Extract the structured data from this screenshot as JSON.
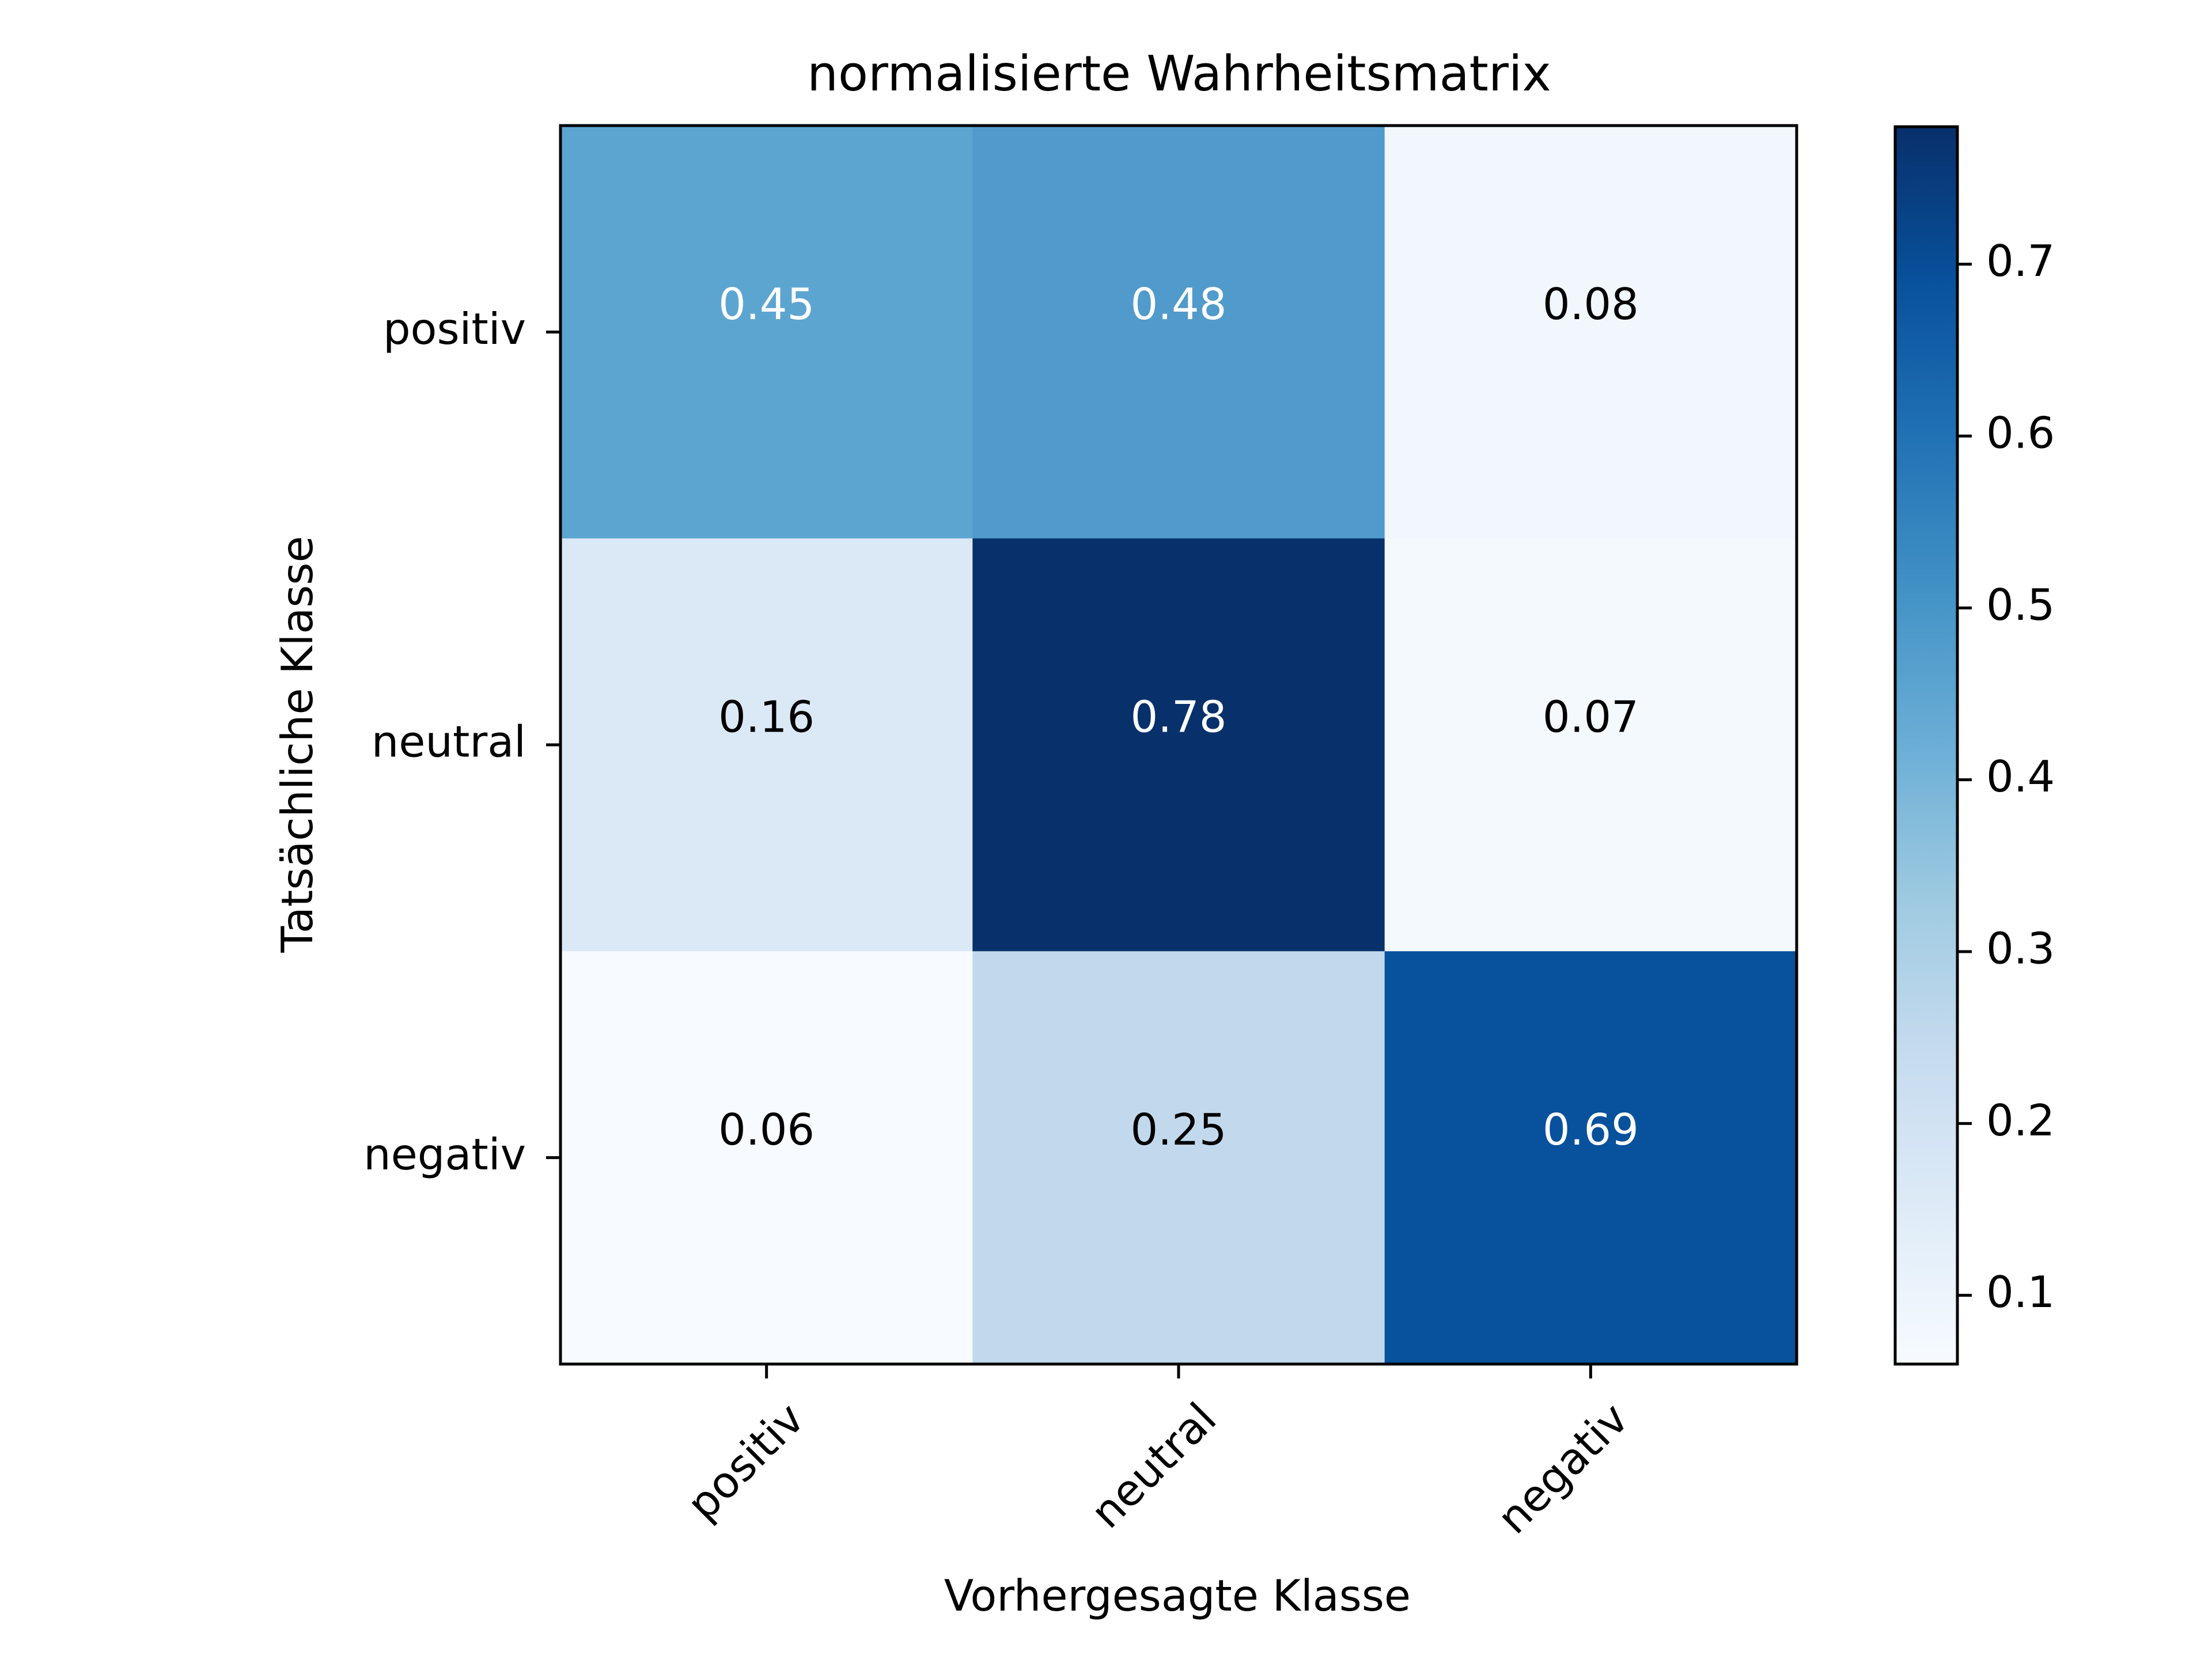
{
  "chart_data": {
    "type": "heatmap",
    "title": "normalisierte Wahrheitsmatrix",
    "xlabel": "Vorhergesagte Klasse",
    "ylabel": "Tatsächliche Klasse",
    "x_categories": [
      "positiv",
      "neutral",
      "negativ"
    ],
    "y_categories": [
      "positiv",
      "neutral",
      "negativ"
    ],
    "values": [
      [
        0.45,
        0.48,
        0.08
      ],
      [
        0.16,
        0.78,
        0.07
      ],
      [
        0.06,
        0.25,
        0.69
      ]
    ],
    "value_labels": [
      [
        "0.45",
        "0.48",
        "0.08"
      ],
      [
        "0.16",
        "0.78",
        "0.07"
      ],
      [
        "0.06",
        "0.25",
        "0.69"
      ]
    ],
    "colormap": "Blues",
    "colorbar": {
      "range": [
        0.06,
        0.78
      ],
      "ticks": [
        0.1,
        0.2,
        0.3,
        0.4,
        0.5,
        0.6,
        0.7
      ],
      "tick_labels": [
        "0.1",
        "0.2",
        "0.3",
        "0.4",
        "0.5",
        "0.6",
        "0.7"
      ]
    },
    "colormap_stops": [
      "#f7fbff",
      "#deebf7",
      "#c6dbef",
      "#9ecae1",
      "#6baed6",
      "#4292c6",
      "#2171b5",
      "#08519c",
      "#08306b"
    ],
    "text_colors": {
      "dark_cell": "#ffffff",
      "light_cell": "#000000"
    },
    "grid": false
  }
}
